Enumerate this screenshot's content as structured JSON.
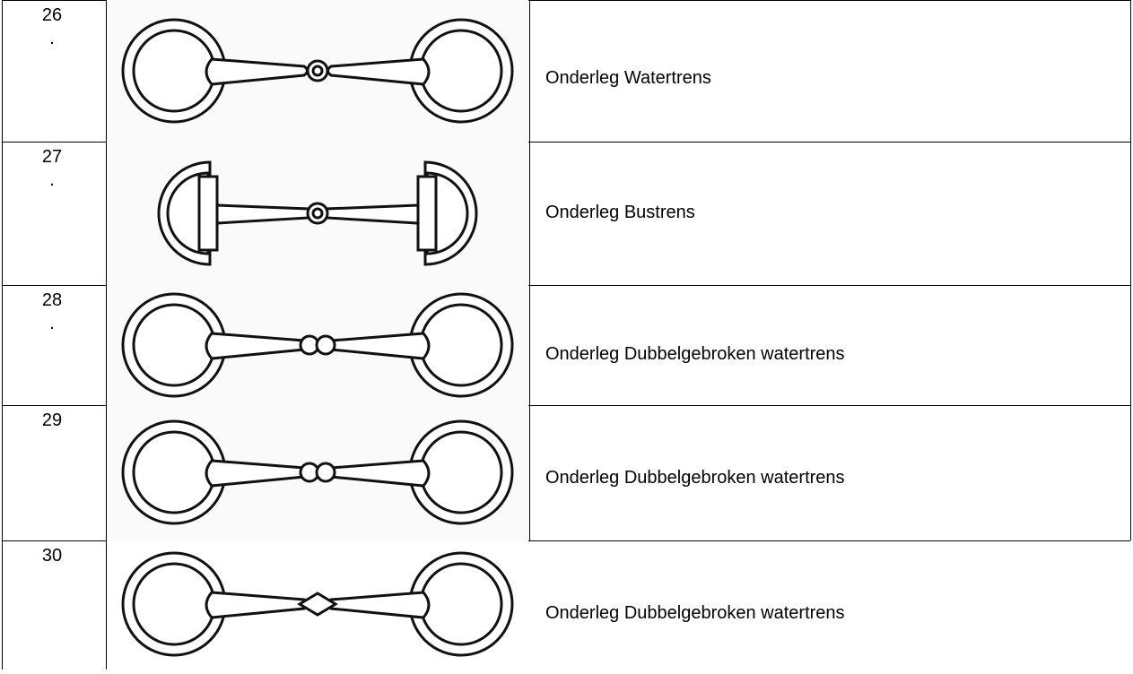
{
  "rows": [
    {
      "num": "26",
      "dot": ".",
      "label": "Onderleg Watertrens"
    },
    {
      "num": "27",
      "dot": ".",
      "label": "Onderleg Bustrens"
    },
    {
      "num": "28",
      "dot": ".",
      "label": "Onderleg Dubbelgebroken watertrens"
    },
    {
      "num": "29",
      "label": "Onderleg Dubbelgebroken watertrens"
    },
    {
      "num": "30",
      "label": "Onderleg Dubbelgebroken watertrens"
    }
  ]
}
